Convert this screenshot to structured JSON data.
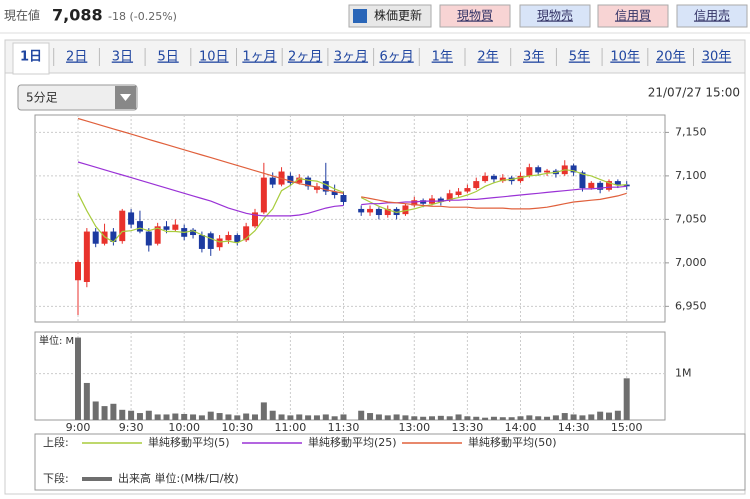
{
  "header": {
    "price_label": "現在値",
    "price": "7,088",
    "change": "-18 (-0.25%)",
    "buttons": [
      "株価更新",
      "現物買",
      "現物売",
      "信用買",
      "信用売"
    ]
  },
  "tabs": [
    "1日",
    "2日",
    "3日",
    "5日",
    "10日",
    "1ヶ月",
    "2ヶ月",
    "3ヶ月",
    "6ヶ月",
    "1年",
    "2年",
    "3年",
    "5年",
    "10年",
    "20年",
    "30年"
  ],
  "interval": "5分足",
  "date": "21/07/27 15:00",
  "chart_data": {
    "type": "candlestick",
    "categories": [
      "9:00",
      null,
      null,
      null,
      null,
      null,
      "9:30",
      null,
      null,
      null,
      null,
      null,
      "10:00",
      null,
      null,
      null,
      null,
      null,
      "10:30",
      null,
      null,
      null,
      null,
      null,
      "11:00",
      null,
      null,
      null,
      null,
      null,
      "11:30",
      null,
      null,
      null,
      null,
      null,
      null,
      null,
      "13:00",
      null,
      null,
      null,
      null,
      null,
      "13:30",
      null,
      null,
      null,
      null,
      null,
      "14:00",
      null,
      null,
      null,
      null,
      null,
      "14:30",
      null,
      null,
      null,
      null,
      null,
      "15:00"
    ],
    "open": [
      6980,
      6978,
      7036,
      7022,
      7036,
      7025,
      7058,
      7048,
      7036,
      7022,
      7042,
      7038,
      7040,
      7038,
      7032,
      7034,
      7018,
      7026,
      7032,
      7026,
      7042,
      7058,
      7098,
      7090,
      7100,
      7092,
      7098,
      7084,
      7094,
      7082,
      7078,
      null,
      7062,
      7058,
      7062,
      7055,
      7062,
      7056,
      7066,
      7072,
      7068,
      7074,
      7072,
      7078,
      7082,
      7086,
      7094,
      7100,
      7094,
      7098,
      7094,
      7100,
      7110,
      7104,
      7106,
      7102,
      7112,
      7104,
      7086,
      7092,
      7084,
      7094,
      7090
    ],
    "high": [
      7003,
      7040,
      7040,
      7045,
      7040,
      7062,
      7062,
      7060,
      7040,
      7046,
      7048,
      7050,
      7044,
      7040,
      7036,
      7036,
      7032,
      7036,
      7034,
      7046,
      7062,
      7115,
      7104,
      7110,
      7104,
      7102,
      7100,
      7092,
      7115,
      7090,
      7082,
      null,
      7066,
      7066,
      7064,
      7066,
      7064,
      7068,
      7076,
      7074,
      7078,
      7076,
      7084,
      7086,
      7090,
      7098,
      7104,
      7102,
      7102,
      7100,
      7104,
      7114,
      7112,
      7108,
      7108,
      7118,
      7114,
      7106,
      7094,
      7094,
      7096,
      7096,
      7094
    ],
    "low": [
      6940,
      6972,
      7018,
      7020,
      7020,
      7022,
      7040,
      7034,
      7013,
      7020,
      7034,
      7036,
      7026,
      7028,
      7012,
      7008,
      7014,
      7022,
      7020,
      7024,
      7040,
      7056,
      7086,
      7088,
      7088,
      7090,
      7084,
      7080,
      7078,
      7074,
      7066,
      null,
      7054,
      7054,
      7050,
      7052,
      7050,
      7054,
      7064,
      7064,
      7066,
      7066,
      7070,
      7076,
      7080,
      7084,
      7092,
      7092,
      7092,
      7090,
      7092,
      7098,
      7100,
      7100,
      7098,
      7100,
      7100,
      7082,
      7084,
      7080,
      7082,
      7086,
      7084
    ],
    "close": [
      7001,
      7036,
      7022,
      7036,
      7024,
      7060,
      7044,
      7036,
      7020,
      7042,
      7038,
      7044,
      7030,
      7032,
      7016,
      7016,
      7028,
      7032,
      7024,
      7042,
      7058,
      7098,
      7090,
      7105,
      7092,
      7098,
      7088,
      7088,
      7082,
      7078,
      7070,
      null,
      7058,
      7062,
      7055,
      7062,
      7055,
      7066,
      7072,
      7068,
      7074,
      7070,
      7080,
      7082,
      7086,
      7094,
      7100,
      7096,
      7098,
      7094,
      7100,
      7110,
      7104,
      7106,
      7102,
      7112,
      7104,
      7086,
      7092,
      7084,
      7094,
      7090,
      7088
    ],
    "up_color": "#e8322c",
    "down_color": "#1c3aa0",
    "ylim": [
      6932,
      7170
    ],
    "yticks": [
      {
        "value": 6950,
        "label": "6,950"
      },
      {
        "value": 7000,
        "label": "7,000"
      },
      {
        "value": 7050,
        "label": "7,050"
      },
      {
        "value": 7100,
        "label": "7,100"
      },
      {
        "value": 7150,
        "label": "7,150"
      }
    ],
    "grid": true,
    "legend_upper_label": "上段:",
    "legend_lower_label": "下段:",
    "series": [
      {
        "name": "単純移動平均(5)",
        "color": "#a8cc3c",
        "values": [
          7080,
          7060,
          7042,
          7030,
          7024,
          7036,
          7037,
          7040,
          7037,
          7040,
          7036,
          7036,
          7035,
          7037,
          7032,
          7028,
          7024,
          7025,
          7023,
          7028,
          7037,
          7051,
          7062,
          7083,
          7089,
          7097,
          7095,
          7094,
          7090,
          7085,
          7081,
          null,
          7075,
          7070,
          7065,
          7061,
          7058,
          7060,
          7062,
          7065,
          7067,
          7070,
          7073,
          7075,
          7078,
          7082,
          7088,
          7092,
          7095,
          7096,
          7098,
          7100,
          7101,
          7103,
          7104,
          7107,
          7106,
          7102,
          7100,
          7096,
          7092,
          7089,
          7090
        ]
      },
      {
        "name": "単純移動平均(25)",
        "color": "#9a32d6",
        "values": [
          7116,
          7113,
          7110,
          7107,
          7104,
          7101,
          7098,
          7095,
          7092,
          7089,
          7086,
          7083,
          7080,
          7077,
          7074,
          7071,
          7067,
          7063,
          7060,
          7057,
          7055,
          7054,
          7054,
          7054,
          7054,
          7055,
          7057,
          7060,
          7063,
          7065,
          7066,
          null,
          7067,
          7068,
          7068,
          7069,
          7069,
          7070,
          7070,
          7071,
          7071,
          7071,
          7072,
          7072,
          7073,
          7073,
          7074,
          7075,
          7076,
          7077,
          7078,
          7079,
          7080,
          7081,
          7082,
          7083,
          7084,
          7085,
          7085,
          7086,
          7087,
          7087,
          7088
        ]
      },
      {
        "name": "単純移動平均(50)",
        "color": "#e0603c",
        "values": [
          7166,
          7163,
          7160,
          7157,
          7154,
          7151,
          7148,
          7145,
          7142,
          7139,
          7136,
          7133,
          7130,
          7127,
          7124,
          7121,
          7118,
          7115,
          7112,
          7109,
          7106,
          7103,
          7100,
          7097,
          7094,
          7091,
          7089,
          7087,
          7084,
          7082,
          7080,
          null,
          7076,
          7074,
          7072,
          7070,
          7069,
          7068,
          7067,
          7066,
          7065,
          7065,
          7064,
          7064,
          7064,
          7063,
          7063,
          7063,
          7063,
          7062,
          7062,
          7062,
          7063,
          7064,
          7066,
          7068,
          7070,
          7071,
          7072,
          7073,
          7075,
          7077,
          7080
        ]
      }
    ],
    "volume": {
      "type": "bar",
      "label": "単位: M",
      "name": "出来高 単位:(M株/口/枚)",
      "color": "#6e6e6e",
      "values": [
        1.78,
        0.8,
        0.4,
        0.3,
        0.35,
        0.22,
        0.2,
        0.15,
        0.2,
        0.12,
        0.12,
        0.14,
        0.13,
        0.12,
        0.1,
        0.18,
        0.15,
        0.12,
        0.1,
        0.14,
        0.12,
        0.38,
        0.2,
        0.12,
        0.1,
        0.12,
        0.1,
        0.1,
        0.12,
        0.08,
        0.12,
        null,
        0.2,
        0.15,
        0.12,
        0.1,
        0.12,
        0.1,
        0.08,
        0.07,
        0.08,
        0.09,
        0.08,
        0.12,
        0.08,
        0.07,
        0.05,
        0.07,
        0.06,
        0.06,
        0.08,
        0.1,
        0.08,
        0.07,
        0.1,
        0.15,
        0.12,
        0.1,
        0.12,
        0.18,
        0.16,
        0.2,
        0.9
      ],
      "ylim": [
        0,
        1.9
      ],
      "yticks": [
        {
          "value": 1,
          "label": "1M"
        }
      ]
    }
  }
}
